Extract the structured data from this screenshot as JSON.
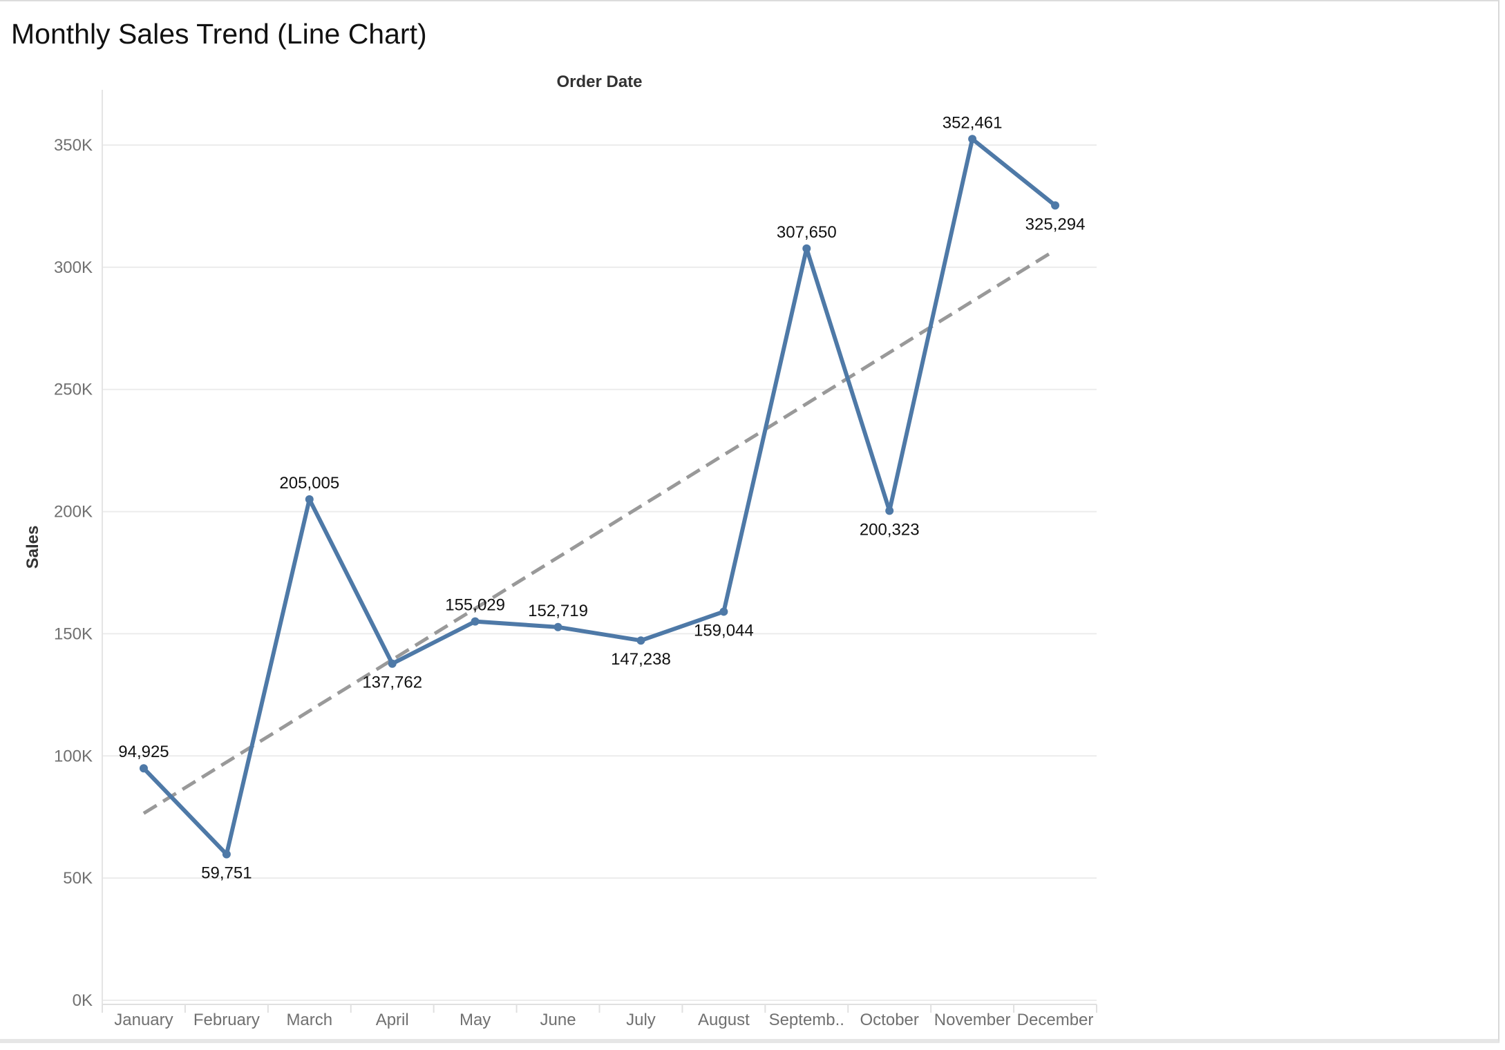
{
  "chart_data": {
    "type": "line",
    "title": "Monthly Sales Trend (Line Chart)",
    "xlabel": "Order Date",
    "ylabel": "Sales",
    "categories": [
      "January",
      "February",
      "March",
      "April",
      "May",
      "June",
      "July",
      "August",
      "Septemb..",
      "October",
      "November",
      "December"
    ],
    "series": [
      {
        "values": [
          94925,
          59751,
          205005,
          137762,
          155029,
          152719,
          147238,
          159044,
          307650,
          200323,
          352461,
          325294
        ],
        "data_labels": [
          "94,925",
          "59,751",
          "205,005",
          "137,762",
          "155,029",
          "152,719",
          "147,238",
          "159,044",
          "307,650",
          "200,323",
          "352,461",
          "325,294"
        ],
        "label_placement": [
          "above",
          "below",
          "above",
          "below",
          "above",
          "above",
          "below",
          "below",
          "above",
          "below",
          "above",
          "below"
        ],
        "color": "#4e79a7"
      }
    ],
    "trend_line": {
      "style": "dashed",
      "color": "#999999",
      "start_value": 76500,
      "end_value": 307000
    },
    "ylim": [
      0,
      370000
    ],
    "yticks": [
      0,
      50000,
      100000,
      150000,
      200000,
      250000,
      300000,
      350000
    ],
    "ytick_labels": [
      "0K",
      "50K",
      "100K",
      "150K",
      "200K",
      "250K",
      "300K",
      "350K"
    ],
    "grid": true,
    "legend": "none"
  }
}
